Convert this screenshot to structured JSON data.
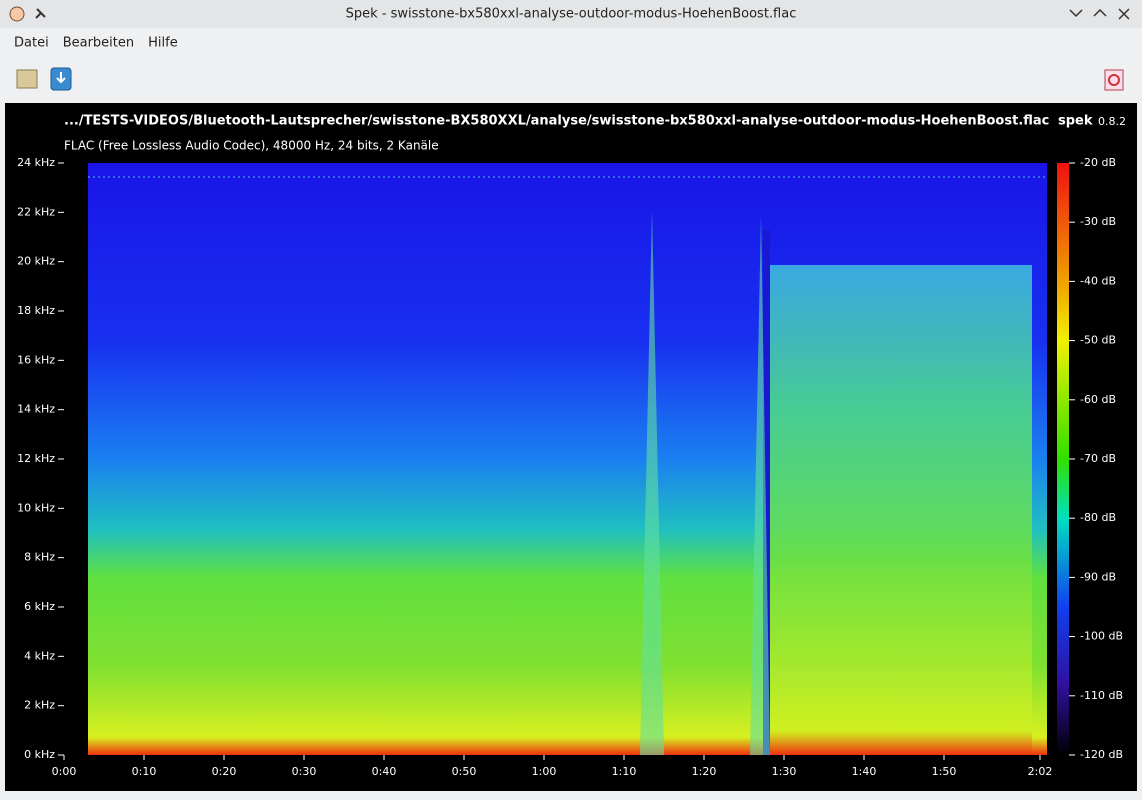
{
  "window": {
    "title": "Spek - swisstone-bx580xxl-analyse-outdoor-modus-HoehenBoost.flac"
  },
  "menu": [
    "Datei",
    "Bearbeiten",
    "Hilfe"
  ],
  "header": {
    "path": ".../TESTS-VIDEOS/Bluetooth-Lautsprecher/swisstone-BX580XXL/analyse/swisstone-bx580xxl-analyse-outdoor-modus-HoehenBoost.flac",
    "app": "spek",
    "version": "0.8.2",
    "info": "FLAC (Free Lossless Audio Codec), 48000 Hz, 24 bits, 2 Kanäle"
  },
  "frequency_axis": [
    "24 kHz",
    "22 kHz",
    "20 kHz",
    "18 kHz",
    "16 kHz",
    "14 kHz",
    "12 kHz",
    "10 kHz",
    "8 kHz",
    "6 kHz",
    "4 kHz",
    "2 kHz",
    "0 kHz"
  ],
  "time_axis": [
    "0:00",
    "0:10",
    "0:20",
    "0:30",
    "0:40",
    "0:50",
    "1:00",
    "1:10",
    "1:20",
    "1:30",
    "1:40",
    "1:50",
    "2:02"
  ],
  "level_scale": [
    "-20 dB",
    "-30 dB",
    "-40 dB",
    "-50 dB",
    "-60 dB",
    "-70 dB",
    "-80 dB",
    "-90 dB",
    "-100 dB",
    "-110 dB",
    "-120 dB"
  ]
}
